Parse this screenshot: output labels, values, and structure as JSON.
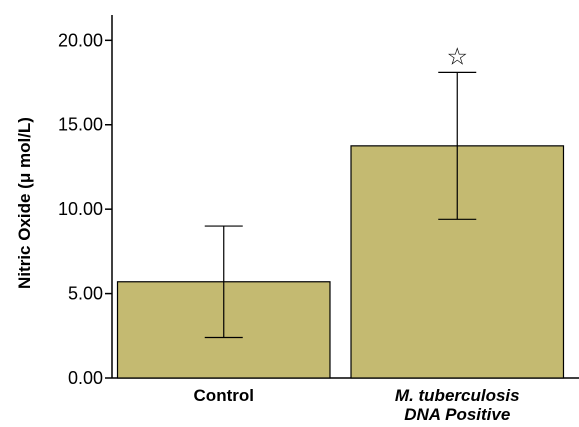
{
  "chart_data": {
    "type": "bar",
    "categories": [
      "Control",
      "M. tuberculosis DNA Positive"
    ],
    "category_labels": [
      [
        "Control"
      ],
      [
        "M. tuberculosis",
        "DNA Positive"
      ]
    ],
    "category_label_italic": [
      false,
      true
    ],
    "values": [
      5.7,
      13.75
    ],
    "error_low": [
      2.4,
      9.4
    ],
    "error_high": [
      9.0,
      18.1
    ],
    "significance_markers": [
      "",
      "☆"
    ],
    "title": "",
    "xlabel": "",
    "ylabel": "Nitric Oxide (μ mol/L)",
    "ylim": [
      0,
      21.5
    ],
    "yticks": [
      0,
      5,
      10,
      15,
      20
    ],
    "ytick_labels": [
      "0.00",
      "5.00",
      "10.00",
      "15.00",
      "20.00"
    ],
    "grid": false,
    "legend": "none",
    "bar_color": "#c4ba71",
    "bar_edge_color": "#000000"
  }
}
